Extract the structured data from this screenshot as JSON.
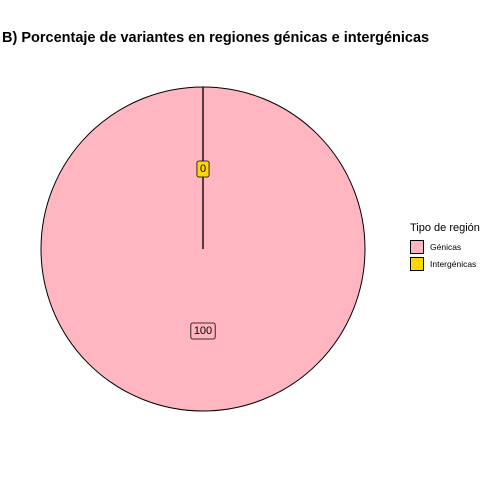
{
  "chart_data": {
    "type": "pie",
    "title": "B) Porcentaje de variantes en regiones génicas e intergénicas",
    "slices": [
      {
        "label": "Génicas",
        "value": 100,
        "data_label": "100",
        "color": "#FFB6C1"
      },
      {
        "label": "Intergénicas",
        "value": 0,
        "data_label": "0",
        "color": "#FFD700"
      }
    ],
    "legend": {
      "title": "Tipo de región",
      "position": "right"
    }
  }
}
